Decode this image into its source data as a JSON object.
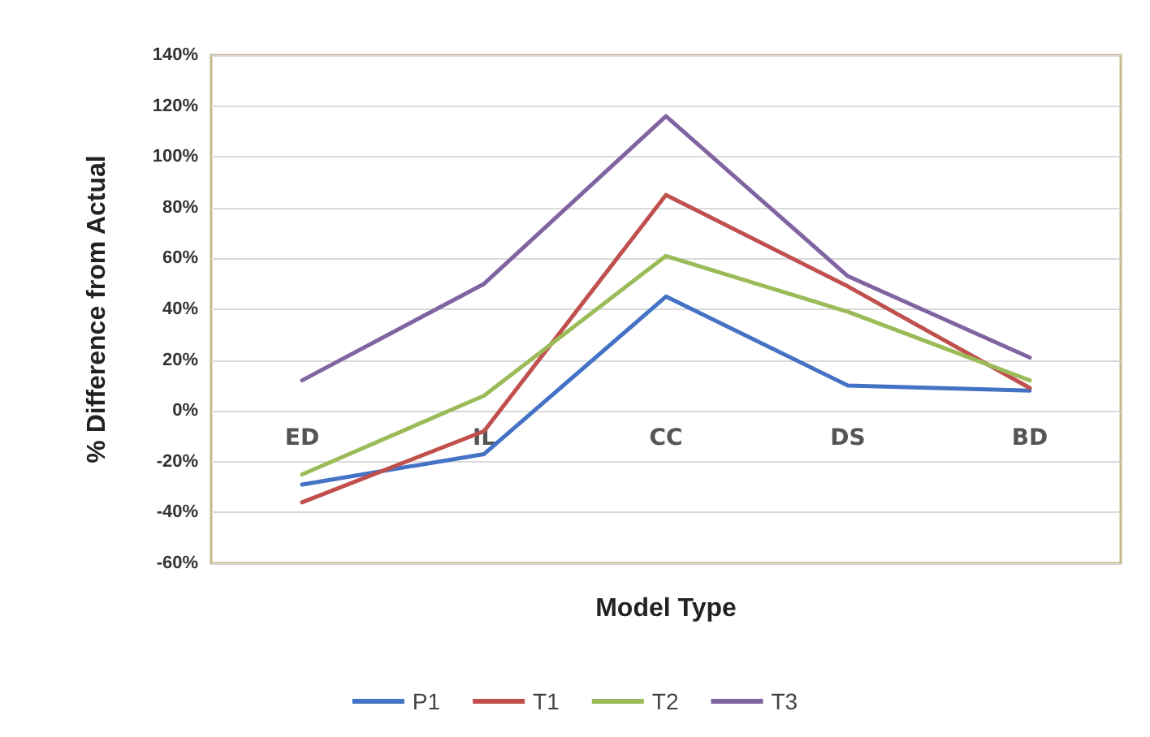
{
  "chart_data": {
    "type": "line",
    "xlabel": "Model Type",
    "ylabel": "% Difference from Actual",
    "categories": [
      "ED",
      "IL",
      "CC",
      "DS",
      "BD"
    ],
    "series": [
      {
        "name": "P1",
        "color": "#4472c4",
        "values": [
          -29,
          -17,
          45,
          10,
          8
        ]
      },
      {
        "name": "T1",
        "color": "#c0504d",
        "values": [
          -36,
          -8,
          85,
          49,
          9
        ]
      },
      {
        "name": "T2",
        "color": "#9bbb59",
        "values": [
          -25,
          6,
          61,
          39,
          12
        ]
      },
      {
        "name": "T3",
        "color": "#8064a2",
        "values": [
          12,
          50,
          116,
          53,
          21
        ]
      }
    ],
    "ylim": [
      -60,
      140
    ],
    "yticks": [
      {
        "value": -60,
        "label": "-60%"
      },
      {
        "value": -40,
        "label": "-40%"
      },
      {
        "value": -20,
        "label": "-20%"
      },
      {
        "value": 0,
        "label": "0%"
      },
      {
        "value": 20,
        "label": "20%"
      },
      {
        "value": 40,
        "label": "40%"
      },
      {
        "value": 60,
        "label": "60%"
      },
      {
        "value": 80,
        "label": "80%"
      },
      {
        "value": 100,
        "label": "100%"
      },
      {
        "value": 120,
        "label": "120%"
      },
      {
        "value": 140,
        "label": "140%"
      }
    ],
    "grid": "y",
    "legend": "bottom",
    "marker": "none",
    "line_style": "solid"
  }
}
